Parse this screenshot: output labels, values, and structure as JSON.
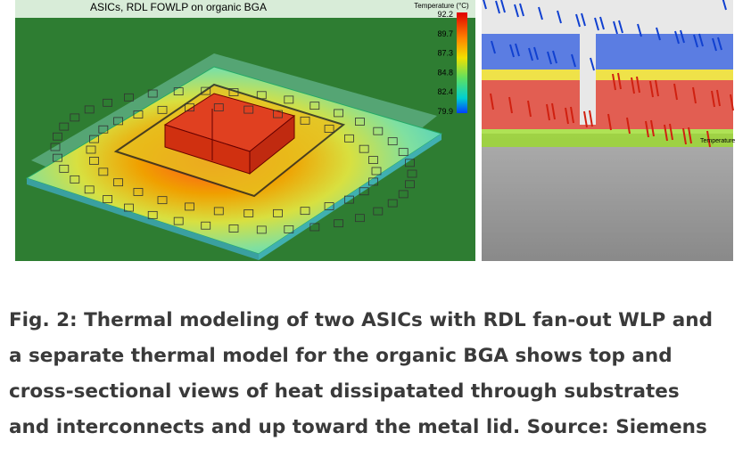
{
  "figure": {
    "left_image": {
      "title": "ASICs, RDL FOWLP on organic BGA",
      "legend": {
        "title": "Temperature (°C)",
        "ticks": [
          92.2,
          89.7,
          87.3,
          84.8,
          82.4,
          79.9
        ]
      }
    },
    "right_image": {
      "legend": {
        "title": "Temperature"
      }
    },
    "caption": "Fig. 2: Thermal modeling of two ASICs with RDL fan-out WLP and a separate thermal model for the organic BGA shows top and cross-sectional views of heat dissipatated through substrates and interconnects and up toward the metal lid. Source: Siemens"
  }
}
